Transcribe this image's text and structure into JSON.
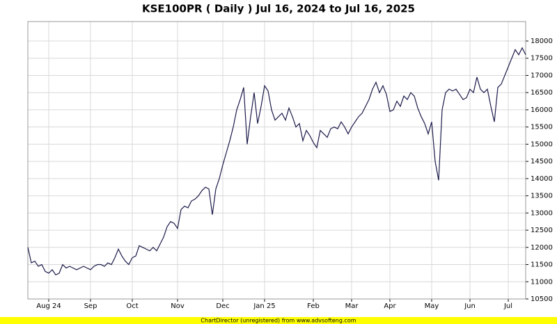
{
  "chart_data": {
    "type": "line",
    "title": "KSE100PR ( Daily ) Jul 16, 2024 to Jul 16, 2025",
    "footer": "ChartDirector (unregistered) from www.advsofteng.com",
    "categories": [
      null,
      null,
      null,
      null,
      null,
      null,
      "Aug 24",
      null,
      null,
      null,
      null,
      null,
      null,
      null,
      null,
      null,
      null,
      null,
      "Sep",
      null,
      null,
      null,
      null,
      null,
      null,
      null,
      null,
      null,
      null,
      null,
      "Oct",
      null,
      null,
      null,
      null,
      null,
      null,
      null,
      null,
      null,
      null,
      null,
      null,
      "Nov",
      null,
      null,
      null,
      null,
      null,
      null,
      null,
      null,
      null,
      null,
      null,
      null,
      "Dec",
      null,
      null,
      null,
      null,
      null,
      null,
      null,
      null,
      null,
      null,
      null,
      "Jan 25",
      null,
      null,
      null,
      null,
      null,
      null,
      null,
      null,
      null,
      null,
      null,
      null,
      null,
      "Feb",
      null,
      null,
      null,
      null,
      null,
      null,
      null,
      null,
      null,
      null,
      "Mar",
      null,
      null,
      null,
      null,
      null,
      null,
      null,
      null,
      null,
      null,
      "Apr",
      null,
      null,
      null,
      null,
      null,
      null,
      null,
      null,
      null,
      null,
      null,
      "May",
      null,
      null,
      null,
      null,
      null,
      null,
      null,
      null,
      null,
      null,
      "Jun",
      null,
      null,
      null,
      null,
      null,
      null,
      null,
      null,
      null,
      null,
      "Jul",
      null,
      null,
      null,
      null,
      null
    ],
    "series": [
      {
        "name": "KSE100PR",
        "color": "#1a1a4a",
        "values": [
          12000,
          11550,
          11600,
          11450,
          11500,
          11300,
          11250,
          11350,
          11200,
          11250,
          11500,
          11400,
          11450,
          11400,
          11350,
          11400,
          11450,
          11400,
          11350,
          11450,
          11500,
          11500,
          11450,
          11550,
          11500,
          11700,
          11950,
          11750,
          11600,
          11500,
          11700,
          11750,
          12050,
          12000,
          11950,
          11900,
          12000,
          11900,
          12100,
          12300,
          12600,
          12750,
          12700,
          12550,
          13100,
          13200,
          13150,
          13350,
          13400,
          13500,
          13650,
          13750,
          13700,
          12950,
          13700,
          14000,
          14400,
          14750,
          15100,
          15500,
          16000,
          16300,
          16650,
          15000,
          15800,
          16500,
          15600,
          16100,
          16700,
          16550,
          16000,
          15700,
          15800,
          15900,
          15700,
          16050,
          15800,
          15500,
          15600,
          15100,
          15400,
          15250,
          15050,
          14900,
          15400,
          15300,
          15200,
          15450,
          15500,
          15450,
          15650,
          15500,
          15300,
          15500,
          15650,
          15800,
          15900,
          16100,
          16300,
          16600,
          16800,
          16500,
          16700,
          16450,
          15950,
          16000,
          16250,
          16100,
          16400,
          16300,
          16500,
          16400,
          16050,
          15800,
          15600,
          15300,
          15650,
          14500,
          13950,
          16000,
          16500,
          16600,
          16550,
          16600,
          16450,
          16300,
          16350,
          16600,
          16500,
          16950,
          16600,
          16500,
          16600,
          16100,
          15650,
          16650,
          16750,
          17000,
          17250,
          17500,
          17750,
          17600,
          17800,
          17600
        ]
      }
    ],
    "ylim": [
      10500,
      18566
    ],
    "yticks": [
      10500,
      11000,
      11500,
      12000,
      12500,
      13000,
      13500,
      14000,
      14500,
      15000,
      15500,
      16000,
      16500,
      17000,
      17500,
      18000
    ],
    "grid": true
  }
}
